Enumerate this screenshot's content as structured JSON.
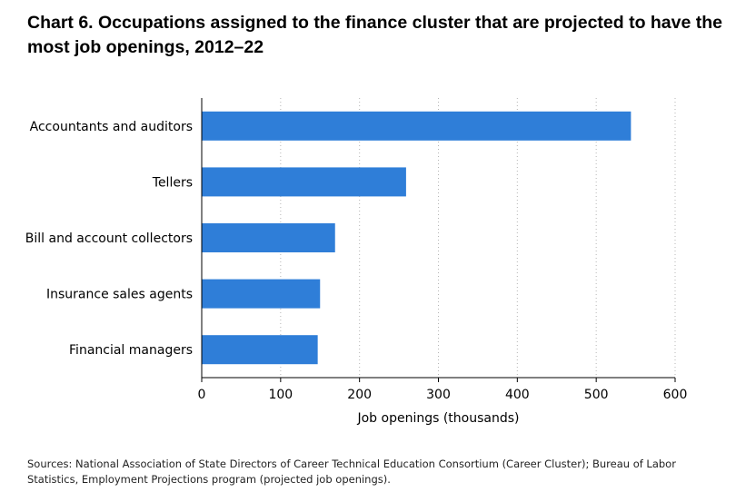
{
  "chart_data": {
    "type": "bar",
    "orientation": "horizontal",
    "title": "Chart 6. Occupations assigned to the finance cluster that are projected to have the most job openings, 2012–22",
    "categories": [
      "Accountants and auditors",
      "Tellers",
      "Bill and account collectors",
      "Insurance sales agents",
      "Financial managers"
    ],
    "values": [
      544,
      259,
      169,
      150,
      147
    ],
    "xlabel": "Job openings (thousands)",
    "ylabel": "",
    "xlim": [
      0,
      600
    ],
    "xticks": [
      "0",
      "100",
      "200",
      "300",
      "400",
      "500",
      "600"
    ],
    "grid": "vertical dotted",
    "bar_color": "#2f7ed8",
    "source": "Sources: National Association of State Directors of Career Technical Education Consortium (Career Cluster); Bureau of Labor Statistics, Employment Projections program (projected job openings)."
  }
}
